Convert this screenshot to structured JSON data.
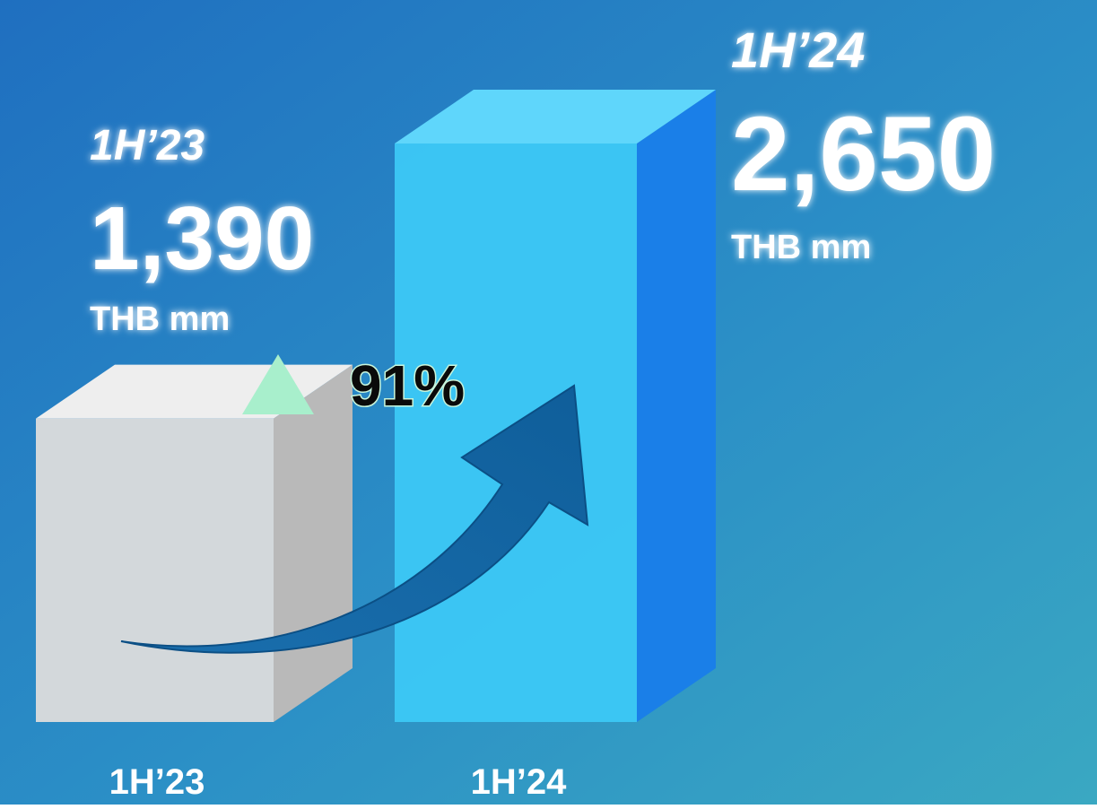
{
  "chart_data": {
    "type": "bar3d",
    "categories": [
      "1H’23",
      "1H’24"
    ],
    "values": [
      1390,
      2650
    ],
    "value_labels": [
      "1,390",
      "2,650"
    ],
    "unit": "THB mm",
    "colors": [
      "#dcdcdc",
      "#3cc8f6"
    ],
    "annotation": "91%"
  }
}
